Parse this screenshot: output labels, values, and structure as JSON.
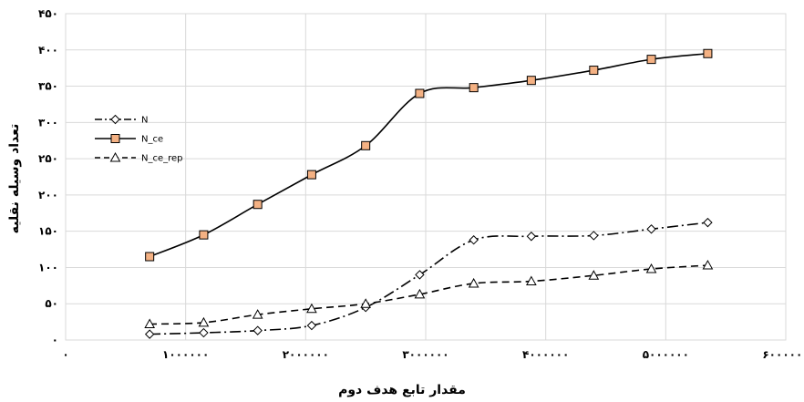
{
  "chart_data": {
    "type": "line",
    "title": "",
    "xlabel": "مقدار تابع هدف دوم",
    "ylabel": "تعداد وسیله نقلیه",
    "xlim": [
      0,
      6000000
    ],
    "ylim": [
      0,
      450
    ],
    "x_ticks": [
      0,
      1000000,
      2000000,
      3000000,
      4000000,
      5000000,
      6000000
    ],
    "x_tick_labels": [
      "۰",
      "۱۰۰۰۰۰۰",
      "۲۰۰۰۰۰۰",
      "۳۰۰۰۰۰۰",
      "۴۰۰۰۰۰۰",
      "۵۰۰۰۰۰۰",
      "۶۰۰۰۰۰۰"
    ],
    "y_ticks": [
      0,
      50,
      100,
      150,
      200,
      250,
      300,
      350,
      400,
      450
    ],
    "y_tick_labels": [
      "۰",
      "۵۰",
      "۱۰۰",
      "۱۵۰",
      "۲۰۰",
      "۲۵۰",
      "۳۰۰",
      "۳۵۰",
      "۴۰۰",
      "۴۵۰"
    ],
    "grid": true,
    "legend_position": "left-middle",
    "series": [
      {
        "name": "N",
        "marker": "diamond",
        "line": "dashdot",
        "x": [
          700000,
          1150000,
          1600000,
          2050000,
          2500000,
          2950000,
          3400000,
          3880000,
          4400000,
          4880000,
          5350000
        ],
        "y": [
          8,
          10,
          13,
          20,
          45,
          90,
          138,
          143,
          144,
          153,
          162
        ]
      },
      {
        "name": "N_ce",
        "marker": "square",
        "line": "solid",
        "x": [
          700000,
          1150000,
          1600000,
          2050000,
          2500000,
          2950000,
          3400000,
          3880000,
          4400000,
          4880000,
          5350000
        ],
        "y": [
          115,
          145,
          187,
          228,
          268,
          340,
          348,
          358,
          372,
          387,
          395
        ]
      },
      {
        "name": "N_ce_rep",
        "marker": "triangle",
        "line": "dashed",
        "x": [
          700000,
          1150000,
          1600000,
          2050000,
          2500000,
          2950000,
          3400000,
          3880000,
          4400000,
          4880000,
          5350000
        ],
        "y": [
          22,
          24,
          35,
          43,
          50,
          63,
          78,
          81,
          89,
          98,
          103
        ]
      }
    ]
  },
  "colors": {
    "n_marker_fill": "#ffffff",
    "n_ce_marker_fill": "#f4b183",
    "n_ce_rep_marker_fill": "#ffffff",
    "line": "#000000",
    "grid": "#d9d9d9"
  }
}
